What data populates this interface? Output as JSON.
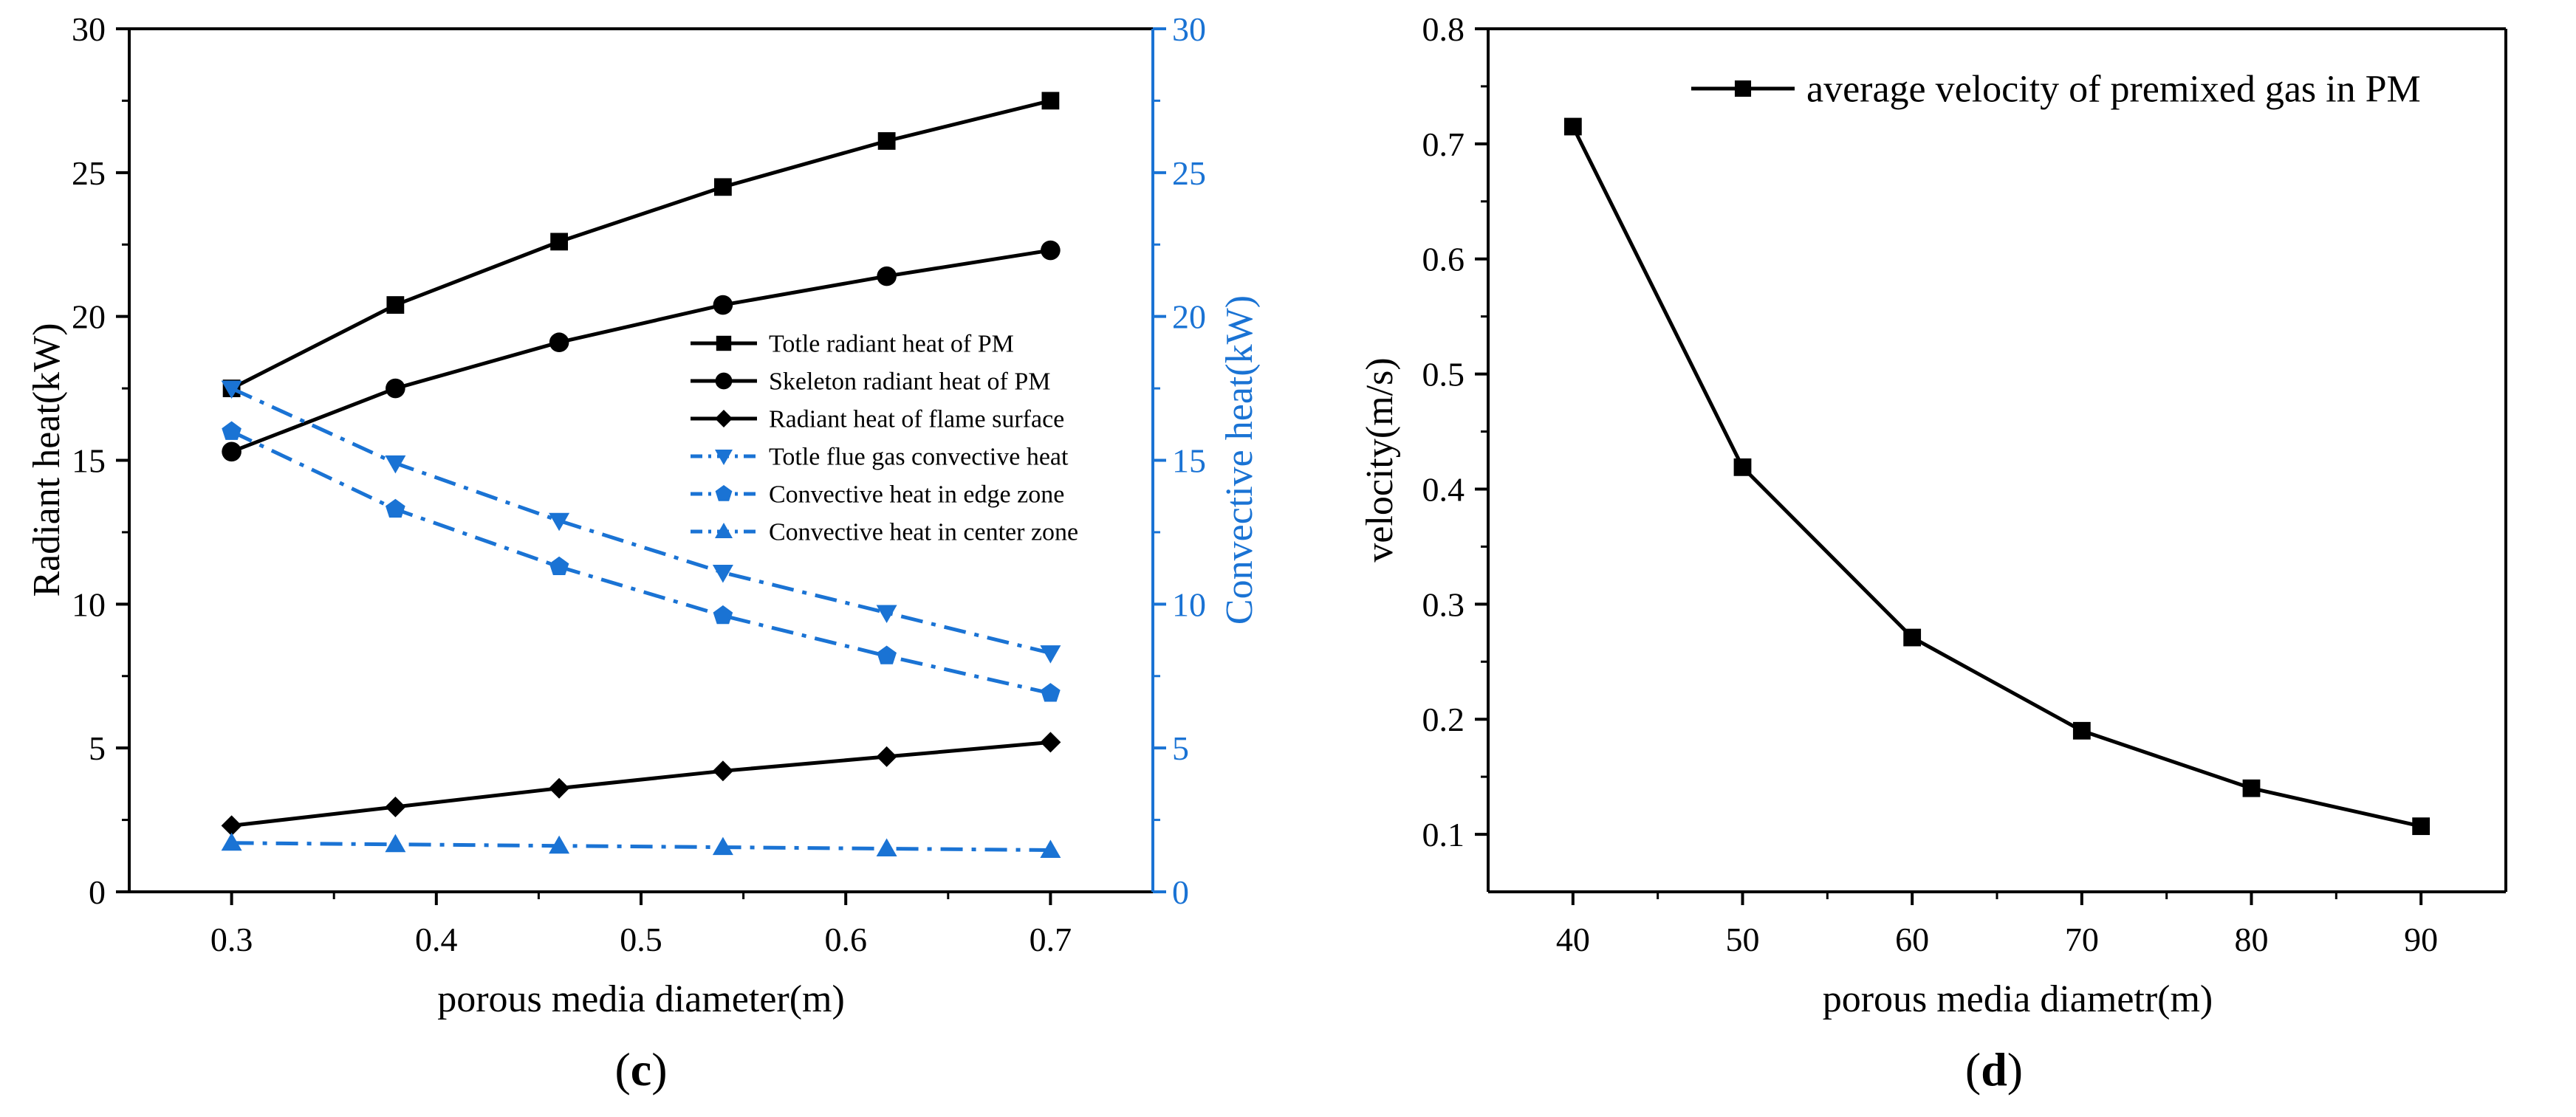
{
  "colors": {
    "black": "#000000",
    "blue": "#1a73d4",
    "background": "#ffffff"
  },
  "chart_data": [
    {
      "panel": "c",
      "panel_label": {
        "open": "(",
        "letter": "c",
        "close": ")"
      },
      "type": "line",
      "xlabel": "porous media diameter(m)",
      "ylabel": "Radiant heat(kW)",
      "y2label": "Convective heat(kW)",
      "xlim": [
        0.25,
        0.75
      ],
      "ylim": [
        0,
        30
      ],
      "y2lim": [
        0,
        30
      ],
      "x_ticks": [
        0.3,
        0.4,
        0.5,
        0.6,
        0.7
      ],
      "x_tick_labels": [
        "0.3",
        "0.4",
        "0.5",
        "0.6",
        "0.7"
      ],
      "y_ticks": [
        0,
        5,
        10,
        15,
        20,
        25,
        30
      ],
      "y_tick_labels": [
        "0",
        "5",
        "10",
        "15",
        "20",
        "25",
        "30"
      ],
      "y2_ticks": [
        0,
        5,
        10,
        15,
        20,
        25,
        30
      ],
      "y2_tick_labels": [
        "0",
        "5",
        "10",
        "15",
        "20",
        "25",
        "30"
      ],
      "x": [
        0.3,
        0.38,
        0.46,
        0.54,
        0.62,
        0.7
      ],
      "legend_position": "center-right",
      "series": [
        {
          "name": "Totle radiant heat of PM",
          "axis": "left",
          "color": "#000000",
          "marker": "square",
          "dash": "solid",
          "values": [
            17.5,
            20.4,
            22.6,
            24.5,
            26.1,
            27.5
          ]
        },
        {
          "name": "Skeleton radiant heat of PM",
          "axis": "left",
          "color": "#000000",
          "marker": "circle",
          "dash": "solid",
          "values": [
            15.3,
            17.5,
            19.1,
            20.4,
            21.4,
            22.3
          ]
        },
        {
          "name": "Radiant heat of flame surface",
          "axis": "left",
          "color": "#000000",
          "marker": "diamond",
          "dash": "solid",
          "values": [
            2.3,
            2.95,
            3.6,
            4.2,
            4.7,
            5.2
          ]
        },
        {
          "name": "Totle flue gas convective heat",
          "axis": "right",
          "color": "#1a73d4",
          "marker": "triangle-down",
          "dash": "dashdot",
          "values": [
            17.5,
            14.9,
            12.9,
            11.1,
            9.7,
            8.3
          ]
        },
        {
          "name": "Convective heat in edge zone",
          "axis": "right",
          "color": "#1a73d4",
          "marker": "pentagon",
          "dash": "dashdot",
          "values": [
            16.0,
            13.3,
            11.3,
            9.6,
            8.2,
            6.9
          ]
        },
        {
          "name": "Convective heat in center zone",
          "axis": "right",
          "color": "#1a73d4",
          "marker": "triangle-up",
          "dash": "dashdot",
          "values": [
            1.7,
            1.65,
            1.6,
            1.55,
            1.5,
            1.45
          ]
        }
      ]
    },
    {
      "panel": "d",
      "panel_label": {
        "open": "(",
        "letter": "d",
        "close": ")"
      },
      "type": "line",
      "xlabel": "porous media diametr(m)",
      "ylabel": "velocity(m/s)",
      "xlim": [
        35,
        95
      ],
      "ylim": [
        0.05,
        0.8
      ],
      "x_ticks": [
        40,
        50,
        60,
        70,
        80,
        90
      ],
      "x_tick_labels": [
        "40",
        "50",
        "60",
        "70",
        "80",
        "90"
      ],
      "y_ticks": [
        0.1,
        0.2,
        0.3,
        0.4,
        0.5,
        0.6,
        0.7,
        0.8
      ],
      "y_tick_labels": [
        "0.1",
        "0.2",
        "0.3",
        "0.4",
        "0.5",
        "0.6",
        "0.7",
        "0.8"
      ],
      "x": [
        40,
        50,
        60,
        70,
        80,
        90
      ],
      "legend_position": "top-right",
      "series": [
        {
          "name": "average velocity of premixed gas in PM",
          "axis": "left",
          "color": "#000000",
          "marker": "square",
          "dash": "solid",
          "values": [
            0.715,
            0.419,
            0.271,
            0.19,
            0.14,
            0.107
          ]
        }
      ]
    }
  ]
}
